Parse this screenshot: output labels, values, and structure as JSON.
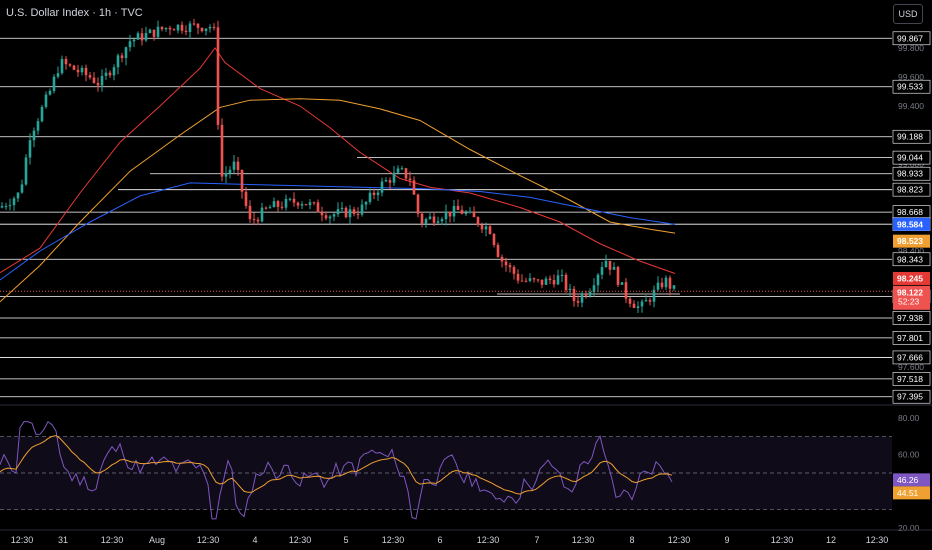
{
  "header": {
    "title": "U.S. Dollar Index · 1h · TVC",
    "currency": "USD"
  },
  "colors": {
    "up": "#26a69a",
    "down": "#ef5350",
    "ma_red": "#e53935",
    "ma_orange": "#f0a030",
    "ma_blue": "#2962ff",
    "rsi_line": "#7e57c2",
    "rsi_ma": "#f0a030",
    "level_line": "#ffffff"
  },
  "price_axis": {
    "ticks": [
      "99.800",
      "99.600",
      "99.400",
      "99.000",
      "98.400",
      "98.200",
      "97.600"
    ]
  },
  "level_labels": [
    "99.867",
    "99.533",
    "99.188",
    "99.044",
    "98.933",
    "98.823",
    "98.668",
    "98.585",
    "98.087",
    "97.938",
    "97.801",
    "97.666",
    "97.518",
    "97.395",
    "98.343"
  ],
  "badges": {
    "ma_blue": "98.584",
    "ma_orange": "98.523",
    "ma_red": "98.245",
    "last_price": "98.122",
    "countdown": "52:23"
  },
  "rsi": {
    "ticks": [
      "80.00",
      "60.00",
      "20.00"
    ],
    "value": "46.26",
    "ma_value": "44.51"
  },
  "time_axis": {
    "labels": [
      "12:30",
      "31",
      "12:30",
      "Aug",
      "12:30",
      "4",
      "12:30",
      "5",
      "12:30",
      "6",
      "12:30",
      "7",
      "12:30",
      "8",
      "12:30",
      "9",
      "12:30",
      "12",
      "12:30"
    ]
  },
  "chart_data": {
    "type": "candlestick",
    "symbol": "U.S. Dollar Index",
    "interval": "1h",
    "source": "TVC",
    "yrange": [
      97.3,
      100.0
    ],
    "horizontal_levels": [
      99.867,
      99.533,
      99.188,
      99.044,
      98.933,
      98.823,
      98.668,
      98.585,
      98.343,
      98.087,
      97.938,
      97.801,
      97.666,
      97.518,
      97.395
    ],
    "last_price": 98.122,
    "moving_averages": [
      {
        "color": "#e53935",
        "last": 98.245
      },
      {
        "color": "#f0a030",
        "last": 98.523
      },
      {
        "color": "#2962ff",
        "last": 98.584
      }
    ],
    "rsi": {
      "last": 46.26,
      "ma_last": 44.51,
      "range": [
        20,
        80
      ]
    }
  }
}
